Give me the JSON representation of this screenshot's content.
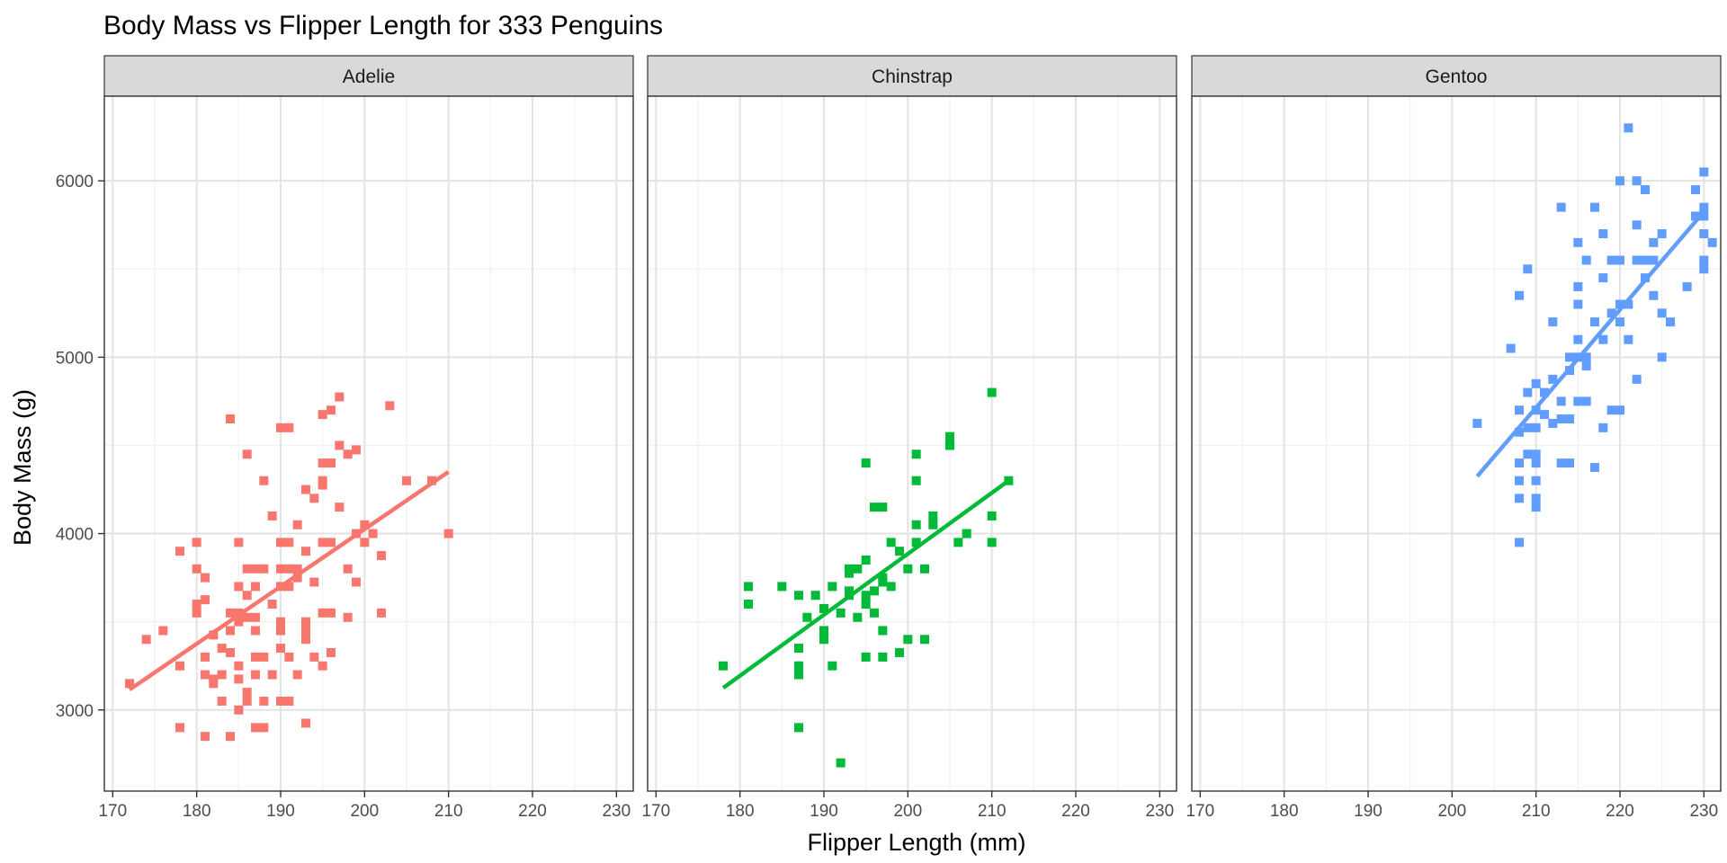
{
  "chart_data": {
    "type": "scatter",
    "title": "Body Mass vs Flipper Length for 333 Penguins",
    "xlabel": "Flipper Length (mm)",
    "ylabel": "Body Mass (g)",
    "xlim": [
      169,
      232
    ],
    "ylim": [
      2540,
      6480
    ],
    "x_ticks": [
      170,
      180,
      190,
      200,
      210,
      220,
      230
    ],
    "y_ticks": [
      3000,
      4000,
      5000,
      6000
    ],
    "grid": true,
    "legend": "none",
    "panels": [
      {
        "name": "Adelie",
        "color": "#F8766D",
        "fit_line": {
          "x": [
            172,
            210
          ],
          "y": [
            3115,
            4350
          ]
        },
        "points": [
          [
            172,
            3150
          ],
          [
            174,
            3400
          ],
          [
            176,
            3450
          ],
          [
            178,
            2900
          ],
          [
            178,
            3250
          ],
          [
            178,
            3900
          ],
          [
            180,
            3950
          ],
          [
            180,
            3800
          ],
          [
            180,
            3600
          ],
          [
            180,
            3550
          ],
          [
            181,
            3750
          ],
          [
            181,
            3625
          ],
          [
            181,
            3300
          ],
          [
            181,
            3200
          ],
          [
            181,
            2850
          ],
          [
            182,
            3425
          ],
          [
            182,
            3175
          ],
          [
            182,
            3150
          ],
          [
            183,
            3350
          ],
          [
            183,
            3200
          ],
          [
            183,
            3050
          ],
          [
            184,
            4650
          ],
          [
            184,
            3550
          ],
          [
            184,
            3450
          ],
          [
            184,
            3325
          ],
          [
            184,
            2850
          ],
          [
            185,
            3950
          ],
          [
            185,
            3700
          ],
          [
            185,
            3550
          ],
          [
            185,
            3500
          ],
          [
            185,
            3250
          ],
          [
            185,
            3175
          ],
          [
            185,
            3000
          ],
          [
            186,
            4450
          ],
          [
            186,
            3800
          ],
          [
            186,
            3650
          ],
          [
            186,
            3525
          ],
          [
            186,
            3100
          ],
          [
            186,
            3050
          ],
          [
            187,
            3800
          ],
          [
            187,
            3700
          ],
          [
            187,
            3525
          ],
          [
            187,
            3450
          ],
          [
            187,
            3300
          ],
          [
            187,
            3200
          ],
          [
            187,
            2900
          ],
          [
            188,
            4300
          ],
          [
            188,
            3800
          ],
          [
            188,
            3300
          ],
          [
            188,
            3050
          ],
          [
            188,
            2900
          ],
          [
            189,
            4100
          ],
          [
            189,
            3600
          ],
          [
            189,
            3200
          ],
          [
            190,
            4600
          ],
          [
            190,
            3950
          ],
          [
            190,
            3800
          ],
          [
            190,
            3700
          ],
          [
            190,
            3500
          ],
          [
            190,
            3450
          ],
          [
            190,
            3350
          ],
          [
            190,
            3050
          ],
          [
            191,
            4600
          ],
          [
            191,
            3950
          ],
          [
            191,
            3800
          ],
          [
            191,
            3700
          ],
          [
            191,
            3300
          ],
          [
            191,
            3050
          ],
          [
            192,
            4050
          ],
          [
            192,
            3800
          ],
          [
            192,
            3750
          ],
          [
            192,
            3200
          ],
          [
            193,
            4250
          ],
          [
            193,
            3900
          ],
          [
            193,
            3500
          ],
          [
            193,
            3450
          ],
          [
            193,
            3400
          ],
          [
            193,
            2925
          ],
          [
            194,
            4200
          ],
          [
            194,
            3725
          ],
          [
            194,
            3300
          ],
          [
            195,
            4675
          ],
          [
            195,
            4400
          ],
          [
            195,
            4300
          ],
          [
            195,
            4275
          ],
          [
            195,
            3950
          ],
          [
            195,
            3550
          ],
          [
            195,
            3250
          ],
          [
            196,
            4700
          ],
          [
            196,
            4400
          ],
          [
            196,
            3950
          ],
          [
            196,
            3550
          ],
          [
            196,
            3325
          ],
          [
            197,
            4775
          ],
          [
            197,
            4500
          ],
          [
            197,
            4150
          ],
          [
            198,
            4450
          ],
          [
            198,
            3800
          ],
          [
            198,
            3525
          ],
          [
            199,
            4475
          ],
          [
            199,
            4000
          ],
          [
            199,
            3725
          ],
          [
            200,
            4050
          ],
          [
            200,
            3950
          ],
          [
            201,
            4000
          ],
          [
            202,
            3875
          ],
          [
            202,
            3550
          ],
          [
            203,
            4725
          ],
          [
            205,
            4300
          ],
          [
            208,
            4300
          ],
          [
            210,
            4000
          ]
        ]
      },
      {
        "name": "Chinstrap",
        "color": "#00BA38",
        "fit_line": {
          "x": [
            178,
            212
          ],
          "y": [
            3125,
            4300
          ]
        },
        "points": [
          [
            178,
            3250
          ],
          [
            181,
            3700
          ],
          [
            181,
            3600
          ],
          [
            185,
            3700
          ],
          [
            187,
            3650
          ],
          [
            187,
            3350
          ],
          [
            187,
            3250
          ],
          [
            187,
            3200
          ],
          [
            187,
            2900
          ],
          [
            188,
            3525
          ],
          [
            189,
            3650
          ],
          [
            190,
            3575
          ],
          [
            190,
            3450
          ],
          [
            190,
            3400
          ],
          [
            191,
            3700
          ],
          [
            191,
            3250
          ],
          [
            192,
            3550
          ],
          [
            192,
            2700
          ],
          [
            193,
            3800
          ],
          [
            193,
            3775
          ],
          [
            193,
            3675
          ],
          [
            193,
            3650
          ],
          [
            194,
            3800
          ],
          [
            194,
            3525
          ],
          [
            195,
            4400
          ],
          [
            195,
            3850
          ],
          [
            195,
            3650
          ],
          [
            195,
            3600
          ],
          [
            195,
            3300
          ],
          [
            196,
            4150
          ],
          [
            196,
            3675
          ],
          [
            196,
            3550
          ],
          [
            197,
            4150
          ],
          [
            197,
            3750
          ],
          [
            197,
            3725
          ],
          [
            197,
            3450
          ],
          [
            197,
            3300
          ],
          [
            198,
            3950
          ],
          [
            198,
            3700
          ],
          [
            199,
            3900
          ],
          [
            199,
            3325
          ],
          [
            200,
            3800
          ],
          [
            200,
            3400
          ],
          [
            201,
            4450
          ],
          [
            201,
            4300
          ],
          [
            201,
            4050
          ],
          [
            201,
            3950
          ],
          [
            202,
            3800
          ],
          [
            202,
            3400
          ],
          [
            203,
            4100
          ],
          [
            203,
            4050
          ],
          [
            205,
            4550
          ],
          [
            205,
            4500
          ],
          [
            206,
            3950
          ],
          [
            207,
            4000
          ],
          [
            210,
            4800
          ],
          [
            210,
            4100
          ],
          [
            210,
            3950
          ],
          [
            212,
            4300
          ]
        ]
      },
      {
        "name": "Gentoo",
        "color": "#619CFF",
        "fit_line": {
          "x": [
            203,
            230
          ],
          "y": [
            4325,
            5825
          ]
        },
        "points": [
          [
            203,
            4625
          ],
          [
            207,
            5050
          ],
          [
            208,
            5350
          ],
          [
            208,
            4700
          ],
          [
            208,
            4575
          ],
          [
            208,
            4400
          ],
          [
            208,
            4300
          ],
          [
            208,
            4200
          ],
          [
            208,
            3950
          ],
          [
            209,
            5500
          ],
          [
            209,
            4800
          ],
          [
            209,
            4600
          ],
          [
            209,
            4450
          ],
          [
            210,
            4850
          ],
          [
            210,
            4700
          ],
          [
            210,
            4600
          ],
          [
            210,
            4450
          ],
          [
            210,
            4400
          ],
          [
            210,
            4300
          ],
          [
            210,
            4200
          ],
          [
            210,
            4150
          ],
          [
            211,
            4800
          ],
          [
            211,
            4675
          ],
          [
            212,
            5200
          ],
          [
            212,
            4875
          ],
          [
            212,
            4625
          ],
          [
            213,
            5850
          ],
          [
            213,
            4750
          ],
          [
            213,
            4650
          ],
          [
            213,
            4400
          ],
          [
            214,
            5000
          ],
          [
            214,
            4925
          ],
          [
            214,
            4650
          ],
          [
            214,
            4400
          ],
          [
            215,
            5650
          ],
          [
            215,
            5400
          ],
          [
            215,
            5300
          ],
          [
            215,
            5100
          ],
          [
            215,
            5000
          ],
          [
            215,
            4750
          ],
          [
            216,
            5550
          ],
          [
            216,
            5000
          ],
          [
            216,
            4950
          ],
          [
            216,
            4750
          ],
          [
            217,
            5850
          ],
          [
            217,
            5200
          ],
          [
            217,
            4375
          ],
          [
            218,
            5700
          ],
          [
            218,
            5450
          ],
          [
            218,
            5100
          ],
          [
            218,
            4600
          ],
          [
            219,
            5550
          ],
          [
            219,
            5250
          ],
          [
            219,
            4700
          ],
          [
            220,
            6000
          ],
          [
            220,
            5550
          ],
          [
            220,
            5300
          ],
          [
            220,
            5200
          ],
          [
            220,
            4700
          ],
          [
            221,
            6300
          ],
          [
            221,
            5300
          ],
          [
            221,
            5100
          ],
          [
            222,
            6000
          ],
          [
            222,
            5750
          ],
          [
            222,
            5550
          ],
          [
            222,
            4875
          ],
          [
            223,
            5950
          ],
          [
            223,
            5550
          ],
          [
            223,
            5450
          ],
          [
            224,
            5650
          ],
          [
            224,
            5550
          ],
          [
            224,
            5350
          ],
          [
            225,
            5700
          ],
          [
            225,
            5250
          ],
          [
            225,
            5000
          ],
          [
            226,
            5200
          ],
          [
            228,
            5400
          ],
          [
            229,
            5950
          ],
          [
            229,
            5800
          ],
          [
            230,
            6050
          ],
          [
            230,
            5850
          ],
          [
            230,
            5800
          ],
          [
            230,
            5700
          ],
          [
            230,
            5550
          ],
          [
            230,
            5500
          ],
          [
            231,
            5650
          ]
        ]
      }
    ]
  }
}
